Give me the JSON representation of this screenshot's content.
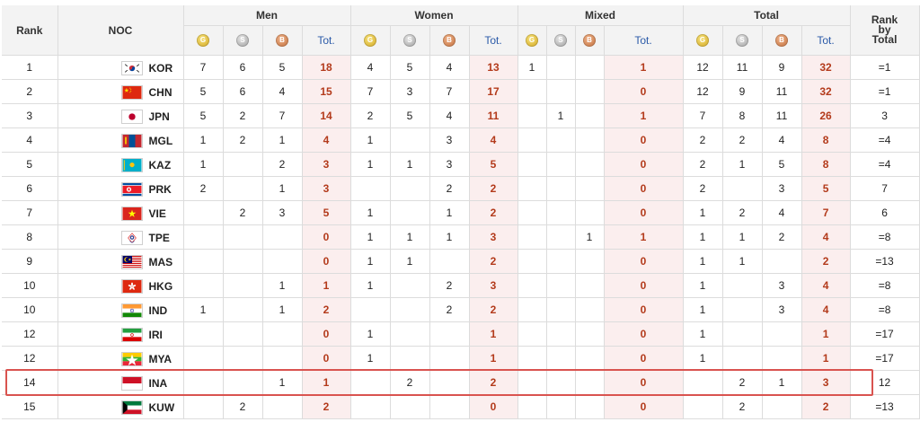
{
  "headers": {
    "rank": "Rank",
    "noc": "NOC",
    "men": "Men",
    "women": "Women",
    "mixed": "Mixed",
    "total": "Total",
    "rank_by_total_1": "Rank",
    "rank_by_total_2": "by",
    "rank_by_total_3": "Total",
    "tot": "Tot.",
    "gold_symbol": "G",
    "silver_symbol": "S",
    "bronze_symbol": "B"
  },
  "colors": {
    "gold": "#d1a620",
    "silver": "#9d9d9d",
    "bronze": "#c06d3a",
    "highlight_border": "#d9534f",
    "total_text": "#b33a1b"
  },
  "rows": [
    {
      "rank": "1",
      "code": "KOR",
      "flag": "kor",
      "men": [
        "7",
        "6",
        "5",
        "18"
      ],
      "women": [
        "4",
        "5",
        "4",
        "13"
      ],
      "mixed": [
        "1",
        "",
        "",
        "1"
      ],
      "total": [
        "12",
        "11",
        "9",
        "32"
      ],
      "rbt": "=1"
    },
    {
      "rank": "2",
      "code": "CHN",
      "flag": "chn",
      "men": [
        "5",
        "6",
        "4",
        "15"
      ],
      "women": [
        "7",
        "3",
        "7",
        "17"
      ],
      "mixed": [
        "",
        "",
        "",
        "0"
      ],
      "total": [
        "12",
        "9",
        "11",
        "32"
      ],
      "rbt": "=1"
    },
    {
      "rank": "3",
      "code": "JPN",
      "flag": "jpn",
      "men": [
        "5",
        "2",
        "7",
        "14"
      ],
      "women": [
        "2",
        "5",
        "4",
        "11"
      ],
      "mixed": [
        "",
        "1",
        "",
        "1"
      ],
      "total": [
        "7",
        "8",
        "11",
        "26"
      ],
      "rbt": "3"
    },
    {
      "rank": "4",
      "code": "MGL",
      "flag": "mgl",
      "men": [
        "1",
        "2",
        "1",
        "4"
      ],
      "women": [
        "1",
        "",
        "3",
        "4"
      ],
      "mixed": [
        "",
        "",
        "",
        "0"
      ],
      "total": [
        "2",
        "2",
        "4",
        "8"
      ],
      "rbt": "=4"
    },
    {
      "rank": "5",
      "code": "KAZ",
      "flag": "kaz",
      "men": [
        "1",
        "",
        "2",
        "3"
      ],
      "women": [
        "1",
        "1",
        "3",
        "5"
      ],
      "mixed": [
        "",
        "",
        "",
        "0"
      ],
      "total": [
        "2",
        "1",
        "5",
        "8"
      ],
      "rbt": "=4"
    },
    {
      "rank": "6",
      "code": "PRK",
      "flag": "prk",
      "men": [
        "2",
        "",
        "1",
        "3"
      ],
      "women": [
        "",
        "",
        "2",
        "2"
      ],
      "mixed": [
        "",
        "",
        "",
        "0"
      ],
      "total": [
        "2",
        "",
        "3",
        "5"
      ],
      "rbt": "7"
    },
    {
      "rank": "7",
      "code": "VIE",
      "flag": "vie",
      "men": [
        "",
        "2",
        "3",
        "5"
      ],
      "women": [
        "1",
        "",
        "1",
        "2"
      ],
      "mixed": [
        "",
        "",
        "",
        "0"
      ],
      "total": [
        "1",
        "2",
        "4",
        "7"
      ],
      "rbt": "6"
    },
    {
      "rank": "8",
      "code": "TPE",
      "flag": "tpe",
      "men": [
        "",
        "",
        "",
        "0"
      ],
      "women": [
        "1",
        "1",
        "1",
        "3"
      ],
      "mixed": [
        "",
        "",
        "1",
        "1"
      ],
      "total": [
        "1",
        "1",
        "2",
        "4"
      ],
      "rbt": "=8"
    },
    {
      "rank": "9",
      "code": "MAS",
      "flag": "mas",
      "men": [
        "",
        "",
        "",
        "0"
      ],
      "women": [
        "1",
        "1",
        "",
        "2"
      ],
      "mixed": [
        "",
        "",
        "",
        "0"
      ],
      "total": [
        "1",
        "1",
        "",
        "2"
      ],
      "rbt": "=13"
    },
    {
      "rank": "10",
      "code": "HKG",
      "flag": "hkg",
      "men": [
        "",
        "",
        "1",
        "1"
      ],
      "women": [
        "1",
        "",
        "2",
        "3"
      ],
      "mixed": [
        "",
        "",
        "",
        "0"
      ],
      "total": [
        "1",
        "",
        "3",
        "4"
      ],
      "rbt": "=8"
    },
    {
      "rank": "10",
      "code": "IND",
      "flag": "ind",
      "men": [
        "1",
        "",
        "1",
        "2"
      ],
      "women": [
        "",
        "",
        "2",
        "2"
      ],
      "mixed": [
        "",
        "",
        "",
        "0"
      ],
      "total": [
        "1",
        "",
        "3",
        "4"
      ],
      "rbt": "=8"
    },
    {
      "rank": "12",
      "code": "IRI",
      "flag": "iri",
      "men": [
        "",
        "",
        "",
        "0"
      ],
      "women": [
        "1",
        "",
        "",
        "1"
      ],
      "mixed": [
        "",
        "",
        "",
        "0"
      ],
      "total": [
        "1",
        "",
        "",
        "1"
      ],
      "rbt": "=17"
    },
    {
      "rank": "12",
      "code": "MYA",
      "flag": "mya",
      "men": [
        "",
        "",
        "",
        "0"
      ],
      "women": [
        "1",
        "",
        "",
        "1"
      ],
      "mixed": [
        "",
        "",
        "",
        "0"
      ],
      "total": [
        "1",
        "",
        "",
        "1"
      ],
      "rbt": "=17"
    },
    {
      "rank": "14",
      "code": "INA",
      "flag": "ina",
      "men": [
        "",
        "",
        "1",
        "1"
      ],
      "women": [
        "",
        "2",
        "",
        "2"
      ],
      "mixed": [
        "",
        "",
        "",
        "0"
      ],
      "total": [
        "",
        "2",
        "1",
        "3"
      ],
      "rbt": "12",
      "highlighted": true
    },
    {
      "rank": "15",
      "code": "KUW",
      "flag": "kuw",
      "men": [
        "",
        "2",
        "",
        "2"
      ],
      "women": [
        "",
        "",
        "",
        "0"
      ],
      "mixed": [
        "",
        "",
        "",
        "0"
      ],
      "total": [
        "",
        "2",
        "",
        "2"
      ],
      "rbt": "=13"
    }
  ]
}
